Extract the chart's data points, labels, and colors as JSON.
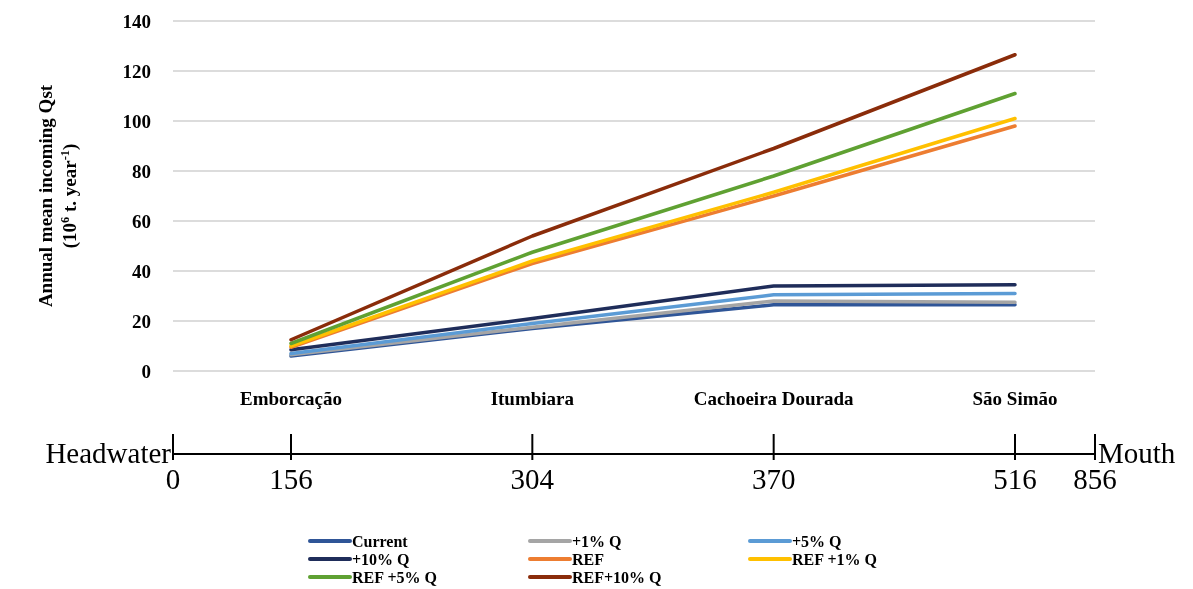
{
  "chart_data": {
    "type": "line",
    "ylabel": "Annual mean incoming Qst\n(10$^{6}$ t. year$^{-1}$)",
    "categories": [
      "Emborcação",
      "Itumbiara",
      "Cachoeira Dourada",
      "São Simão"
    ],
    "ylim": [
      0,
      140
    ],
    "yticks": [
      0,
      20,
      40,
      60,
      80,
      100,
      120,
      140
    ],
    "grid": "y",
    "legend": "bottom",
    "line_style": "solid",
    "marker": "none",
    "series": [
      {
        "name": "Current",
        "color": "#2f5597",
        "values": [
          6,
          17,
          26.5,
          26.5
        ]
      },
      {
        "name": "+1% Q",
        "color": "#a5a5a5",
        "values": [
          6.5,
          17.5,
          28,
          27.5
        ]
      },
      {
        "name": "+5% Q",
        "color": "#5b9bd5",
        "values": [
          7,
          19,
          30.5,
          31
        ]
      },
      {
        "name": "+10% Q",
        "color": "#1f2d5a",
        "values": [
          8.5,
          21,
          34,
          34.5
        ]
      },
      {
        "name": "REF",
        "color": "#ed7d31",
        "values": [
          9.5,
          43,
          70,
          98
        ]
      },
      {
        "name": "REF +1% Q",
        "color": "#ffc000",
        "values": [
          10,
          44,
          71.5,
          101
        ]
      },
      {
        "name": "REF +5% Q",
        "color": "#5fa132",
        "values": [
          11,
          47.5,
          78,
          111
        ]
      },
      {
        "name": "REF+10% Q",
        "color": "#8a2c0a",
        "values": [
          12.5,
          54,
          89,
          126.5
        ]
      }
    ],
    "annotations": [
      "Headwater",
      "0",
      "156",
      "304",
      "370",
      "516",
      "856",
      "Mouth"
    ]
  }
}
